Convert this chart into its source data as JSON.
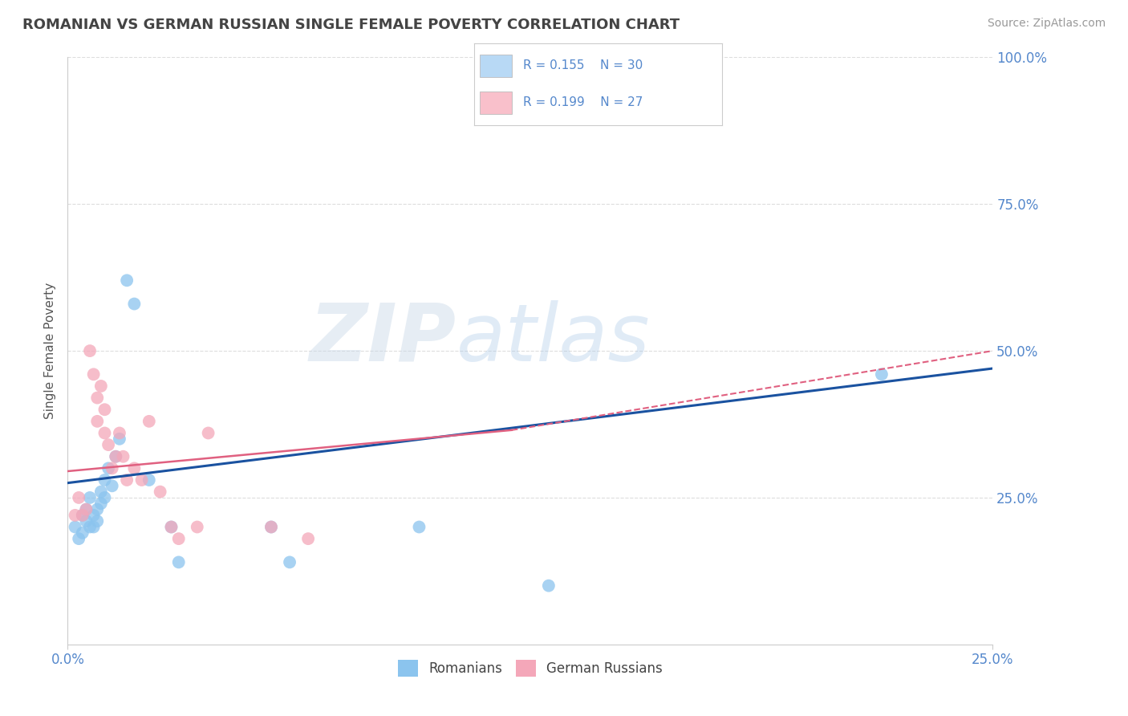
{
  "title": "ROMANIAN VS GERMAN RUSSIAN SINGLE FEMALE POVERTY CORRELATION CHART",
  "source": "Source: ZipAtlas.com",
  "ylabel_label": "Single Female Poverty",
  "xlim": [
    0.0,
    0.25
  ],
  "ylim": [
    0.0,
    1.0
  ],
  "romanians_x": [
    0.002,
    0.003,
    0.004,
    0.004,
    0.005,
    0.005,
    0.006,
    0.006,
    0.007,
    0.007,
    0.008,
    0.008,
    0.009,
    0.009,
    0.01,
    0.01,
    0.011,
    0.012,
    0.013,
    0.014,
    0.016,
    0.018,
    0.022,
    0.028,
    0.03,
    0.055,
    0.06,
    0.095,
    0.13,
    0.22
  ],
  "romanians_y": [
    0.2,
    0.18,
    0.19,
    0.22,
    0.21,
    0.23,
    0.2,
    0.25,
    0.22,
    0.2,
    0.21,
    0.23,
    0.24,
    0.26,
    0.25,
    0.28,
    0.3,
    0.27,
    0.32,
    0.35,
    0.62,
    0.58,
    0.28,
    0.2,
    0.14,
    0.2,
    0.14,
    0.2,
    0.1,
    0.46
  ],
  "german_russians_x": [
    0.002,
    0.003,
    0.004,
    0.005,
    0.006,
    0.007,
    0.008,
    0.008,
    0.009,
    0.01,
    0.01,
    0.011,
    0.012,
    0.013,
    0.014,
    0.015,
    0.016,
    0.018,
    0.02,
    0.022,
    0.025,
    0.028,
    0.03,
    0.035,
    0.038,
    0.055,
    0.065
  ],
  "german_russians_y": [
    0.22,
    0.25,
    0.22,
    0.23,
    0.5,
    0.46,
    0.42,
    0.38,
    0.44,
    0.4,
    0.36,
    0.34,
    0.3,
    0.32,
    0.36,
    0.32,
    0.28,
    0.3,
    0.28,
    0.38,
    0.26,
    0.2,
    0.18,
    0.2,
    0.36,
    0.2,
    0.18
  ],
  "r_romanians": 0.155,
  "n_romanians": 30,
  "r_german_russians": 0.199,
  "n_german_russians": 27,
  "color_romanians": "#8BC4EE",
  "color_german_russians": "#F4A7B9",
  "line_color_romanians": "#1A52A0",
  "line_color_german_russians": "#E06080",
  "line_ext_color_german_russians": "#E06080",
  "watermark_zip": "ZIP",
  "watermark_atlas": "atlas",
  "background_color": "#FFFFFF",
  "grid_color": "#DDDDDD",
  "title_color": "#444444",
  "axis_label_color": "#555555",
  "tick_label_color": "#5588CC",
  "legend_box_color_romanians": "#B8D9F5",
  "legend_box_color_german_russians": "#F9C0CB",
  "legend_text_color": "#5588CC"
}
